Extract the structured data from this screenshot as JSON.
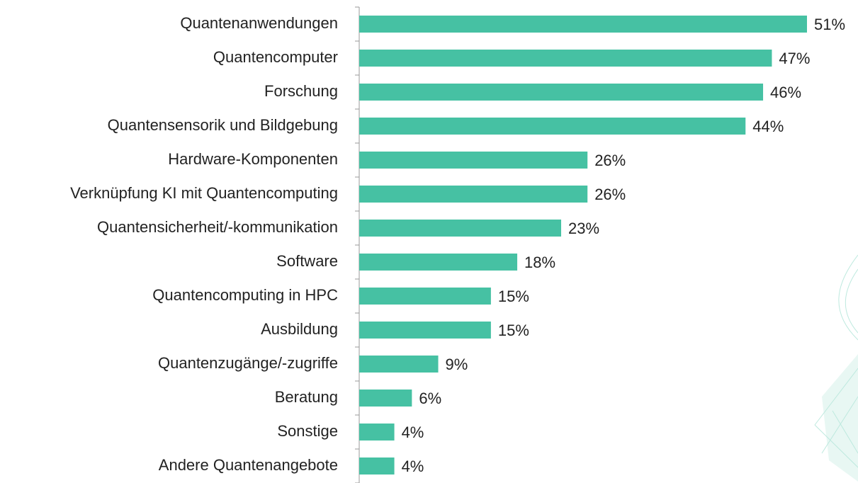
{
  "chart_data": {
    "type": "bar",
    "orientation": "horizontal",
    "categories": [
      "Quantenanwendungen",
      "Quantencomputer",
      "Forschung",
      "Quantensensorik und Bildgebung",
      "Hardware-Komponenten",
      "Verknüpfung KI mit Quantencomputing",
      "Quantensicherheit/-kommunikation",
      "Software",
      "Quantencomputing in HPC",
      "Ausbildung",
      "Quantenzugänge/-zugriffe",
      "Beratung",
      "Sonstige",
      "Andere Quantenangebote"
    ],
    "values": [
      51,
      47,
      46,
      44,
      26,
      26,
      23,
      18,
      15,
      15,
      9,
      6,
      4,
      4
    ],
    "value_labels": [
      "51%",
      "47%",
      "46%",
      "44%",
      "26%",
      "26%",
      "23%",
      "18%",
      "15%",
      "15%",
      "9%",
      "6%",
      "4%",
      "4%"
    ],
    "color": "#46c1a3"
  }
}
